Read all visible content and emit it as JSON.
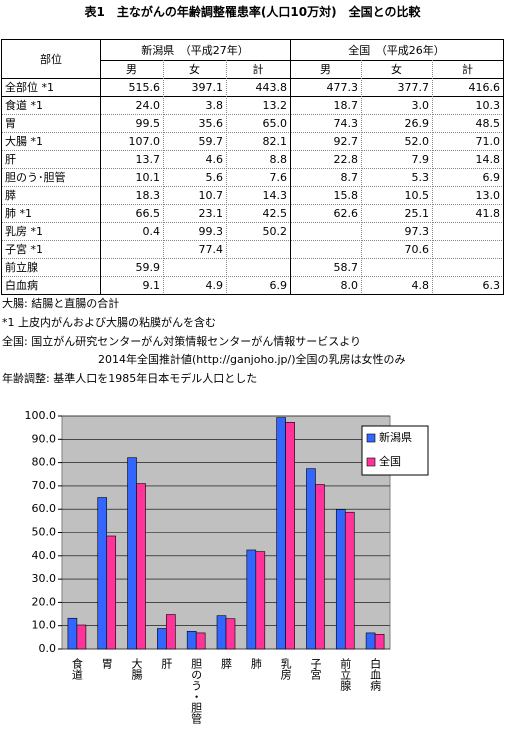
{
  "title": "表1　主ながんの年齢調整罹患率(人口10万対)　全国との比較",
  "table": {
    "header_left": "部位",
    "groups": [
      "新潟県　（平成27年）",
      "全国　（平成26年）"
    ],
    "subheaders": [
      "男",
      "女",
      "計",
      "男",
      "女",
      "計"
    ],
    "rows": [
      [
        "全部位 *1",
        "515.6",
        "397.1",
        "443.8",
        "477.3",
        "377.7",
        "416.6"
      ],
      [
        "食道 *1",
        "24.0",
        "3.8",
        "13.2",
        "18.7",
        "3.0",
        "10.3"
      ],
      [
        "胃",
        "99.5",
        "35.6",
        "65.0",
        "74.3",
        "26.9",
        "48.5"
      ],
      [
        "大腸 *1",
        "107.0",
        "59.7",
        "82.1",
        "92.7",
        "52.0",
        "71.0"
      ],
      [
        "肝",
        "13.7",
        "4.6",
        "8.8",
        "22.8",
        "7.9",
        "14.8"
      ],
      [
        "胆のう･胆管",
        "10.1",
        "5.6",
        "7.6",
        "8.7",
        "5.3",
        "6.9"
      ],
      [
        "膵",
        "18.3",
        "10.7",
        "14.3",
        "15.8",
        "10.5",
        "13.0"
      ],
      [
        "肺 *1",
        "66.5",
        "23.1",
        "42.5",
        "62.6",
        "25.1",
        "41.8"
      ],
      [
        "乳房 *1",
        "0.4",
        "99.3",
        "50.2",
        null,
        "97.3",
        null
      ],
      [
        "子宮 *1",
        null,
        "77.4",
        null,
        null,
        "70.6",
        null
      ],
      [
        "前立腺",
        "59.9",
        null,
        null,
        "58.7",
        null,
        null
      ],
      [
        "白血病",
        "9.1",
        "4.9",
        "6.9",
        "8.0",
        "4.8",
        "6.3"
      ]
    ]
  },
  "notes": [
    "大腸: 結腸と直腸の合計",
    "*1 上皮内がんおよび大腸の粘膜がんを含む",
    "全国: 国立がん研究センターがん対策情報センターがん情報サービスより",
    "2014年全国推計値(http://ganjoho.jp/)全国の乳房は女性のみ",
    "年齢調整: 基準人口を1985年日本モデル人口とした"
  ],
  "chart_data": {
    "type": "bar",
    "categories": [
      "食道",
      "胃",
      "大腸",
      "肝",
      "胆のう・胆管",
      "膵",
      "肺",
      "乳房",
      "子宮",
      "前立腺",
      "白血病"
    ],
    "series": [
      {
        "name": "新潟県",
        "color": "#3366ff",
        "values": [
          13.2,
          65.0,
          82.1,
          8.8,
          7.6,
          14.3,
          42.5,
          99.3,
          77.4,
          59.9,
          6.9
        ]
      },
      {
        "name": "全国",
        "color": "#ff3399",
        "values": [
          10.3,
          48.5,
          71.0,
          14.8,
          6.9,
          13.0,
          41.8,
          97.3,
          70.6,
          58.7,
          6.3
        ]
      }
    ],
    "ylim": [
      0,
      100
    ],
    "yticks": [
      {
        "value": 0,
        "label": "0.0"
      },
      {
        "value": 10,
        "label": "10.0"
      },
      {
        "value": 20,
        "label": "20.0"
      },
      {
        "value": 30,
        "label": "30.0"
      },
      {
        "value": 40,
        "label": "40.0"
      },
      {
        "value": 50,
        "label": "50.0"
      },
      {
        "value": 60,
        "label": "60.0"
      },
      {
        "value": 70,
        "label": "70.0"
      },
      {
        "value": 80,
        "label": "80.0"
      },
      {
        "value": 90,
        "label": "90.0"
      },
      {
        "value": 100,
        "label": "100.0"
      }
    ],
    "grid": true,
    "legend": "top-right"
  }
}
